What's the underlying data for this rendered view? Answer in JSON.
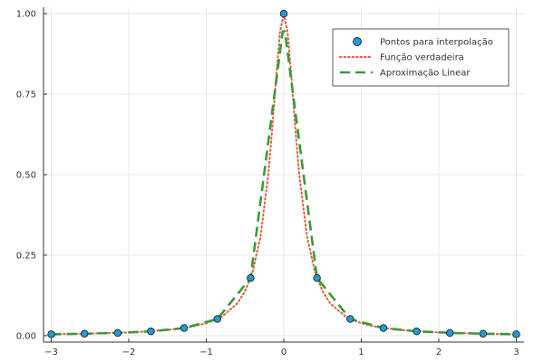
{
  "chart_data": {
    "type": "line",
    "xlim": [
      -3.1,
      3.1
    ],
    "ylim": [
      -0.02,
      1.02
    ],
    "grid": true,
    "legend_position": "top-right",
    "xticks": [
      -3,
      -2,
      -1,
      0,
      1,
      2,
      3
    ],
    "xtick_labels": [
      "−3",
      "−2",
      "−1",
      "0",
      "1",
      "2",
      "3"
    ],
    "yticks": [
      0,
      0.25,
      0.5,
      0.75,
      1.0
    ],
    "ytick_labels": [
      "0.00",
      "0.25",
      "0.50",
      "0.75",
      "1.00"
    ],
    "series": [
      {
        "name": "Pontos para interpolação",
        "kind": "scatter",
        "color": "#1f9bd6",
        "edge_color": "#222222",
        "x": [
          -3.0,
          -2.5714,
          -2.1429,
          -1.7143,
          -1.2857,
          -0.8571,
          -0.4286,
          0.0,
          0.4286,
          0.8571,
          1.2857,
          1.7143,
          2.1429,
          2.5714,
          3.0
        ],
        "y": [
          0.0044,
          0.006,
          0.0086,
          0.0134,
          0.0236,
          0.0516,
          0.179,
          1.0,
          0.179,
          0.0516,
          0.0236,
          0.0134,
          0.0086,
          0.006,
          0.0044
        ]
      },
      {
        "name": "Função verdadeira",
        "kind": "line",
        "style": "dotted",
        "color": "#e05d3a",
        "x": [
          -3.0,
          -2.5,
          -2.0,
          -1.5,
          -1.2,
          -1.0,
          -0.8,
          -0.6,
          -0.5,
          -0.4,
          -0.3,
          -0.2,
          -0.15,
          -0.1,
          -0.05,
          0.0,
          0.05,
          0.1,
          0.15,
          0.2,
          0.3,
          0.4,
          0.5,
          0.6,
          0.8,
          1.0,
          1.2,
          1.5,
          2.0,
          2.5,
          3.0
        ],
        "y": [
          0.0044,
          0.0064,
          0.0099,
          0.0175,
          0.027,
          0.0385,
          0.0588,
          0.1,
          0.1379,
          0.2,
          0.3077,
          0.5,
          0.64,
          0.8,
          0.9412,
          1.0,
          0.9412,
          0.8,
          0.64,
          0.5,
          0.3077,
          0.2,
          0.1379,
          0.1,
          0.0588,
          0.0385,
          0.027,
          0.0175,
          0.0099,
          0.0064,
          0.0044
        ]
      },
      {
        "name": "Aproximação Linear",
        "kind": "line",
        "style": "dashed",
        "color": "#3a9a3a",
        "x": [
          -3.0,
          -2.5714,
          -2.1429,
          -1.7143,
          -1.2857,
          -0.8571,
          -0.4286,
          -0.0143,
          0.0143,
          0.4286,
          0.8571,
          1.2857,
          1.7143,
          2.1429,
          2.5714,
          3.0
        ],
        "y": [
          0.0044,
          0.006,
          0.0086,
          0.0134,
          0.0236,
          0.0516,
          0.179,
          0.945,
          0.945,
          0.179,
          0.0516,
          0.0236,
          0.0134,
          0.0086,
          0.006,
          0.0044
        ]
      }
    ]
  }
}
